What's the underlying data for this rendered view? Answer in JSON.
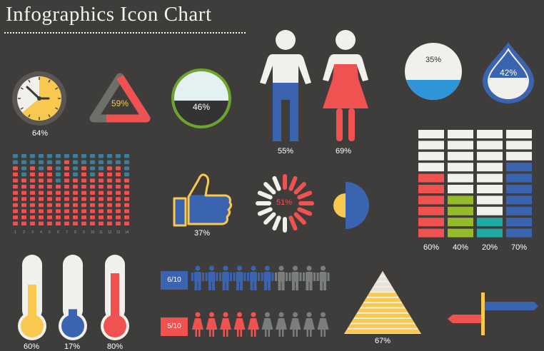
{
  "title": "Infographics Icon Chart",
  "colors": {
    "background": "#3e3d3c",
    "yellow": "#f8c94e",
    "red": "#f05252",
    "blue": "#3b64b0",
    "green": "#95bb2a",
    "teal": "#21a9a3",
    "gray": "#7a7e7c",
    "light": "#f2f0ea"
  },
  "chart_data": [
    {
      "type": "gauge",
      "name": "clock",
      "icon": "clock-icon",
      "value": 64,
      "label": "64%"
    },
    {
      "type": "gauge",
      "name": "triangle",
      "icon": "triangle-icon",
      "value": 59,
      "label": "59%"
    },
    {
      "type": "gauge",
      "name": "circle-fill",
      "icon": "circle-icon",
      "value": 46,
      "label": "46%"
    },
    {
      "type": "gauge",
      "name": "man",
      "icon": "man-icon",
      "value": 55,
      "label": "55%"
    },
    {
      "type": "gauge",
      "name": "woman",
      "icon": "woman-icon",
      "value": 69,
      "label": "69%"
    },
    {
      "type": "gauge",
      "name": "ball",
      "icon": "ball-icon",
      "value": 35,
      "label": "35%"
    },
    {
      "type": "gauge",
      "name": "drop",
      "icon": "drop-icon",
      "value": 42,
      "label": "42%"
    },
    {
      "type": "waffle",
      "name": "dot-matrix",
      "rows": 12,
      "cols": 14,
      "column_values": [
        80,
        70,
        85,
        75,
        80,
        60,
        90,
        70,
        80,
        65,
        75,
        85,
        80,
        70
      ],
      "tick_labels": [
        "1",
        "2",
        "3",
        "4",
        "5",
        "6",
        "7",
        "8",
        "9",
        "10",
        "11",
        "12",
        "13",
        "14"
      ]
    },
    {
      "type": "gauge",
      "name": "thumb",
      "icon": "thumbs-up-icon",
      "value": 37,
      "label": "37%"
    },
    {
      "type": "gauge",
      "name": "spinner",
      "icon": "spinner-icon",
      "value": 51,
      "label": "51%"
    },
    {
      "type": "gauge",
      "name": "half-pie",
      "icon": "half-circle-icon",
      "value": 50,
      "label": ""
    },
    {
      "type": "bar",
      "name": "stacked-blocks",
      "categories": [
        "60%",
        "40%",
        "20%",
        "70%"
      ],
      "values": [
        60,
        40,
        20,
        70
      ],
      "segments": 10
    },
    {
      "type": "gauge",
      "name": "thermometer-1",
      "icon": "thermometer-icon",
      "value": 60,
      "label": "60%"
    },
    {
      "type": "gauge",
      "name": "thermometer-2",
      "icon": "thermometer-icon",
      "value": 17,
      "label": "17%"
    },
    {
      "type": "gauge",
      "name": "thermometer-3",
      "icon": "thermometer-icon",
      "value": 80,
      "label": "80%"
    },
    {
      "type": "pictograph",
      "name": "men-row",
      "icon": "man-icon",
      "filled": 6,
      "total": 10,
      "label": "6/10"
    },
    {
      "type": "pictograph",
      "name": "women-row",
      "icon": "woman-icon",
      "filled": 5,
      "total": 10,
      "label": "5/10"
    },
    {
      "type": "gauge",
      "name": "pyramid",
      "icon": "pyramid-icon",
      "value": 67,
      "label": "67%"
    },
    {
      "type": "gauge",
      "name": "signpost",
      "icon": "signpost-icon",
      "value": 50,
      "label": ""
    }
  ]
}
